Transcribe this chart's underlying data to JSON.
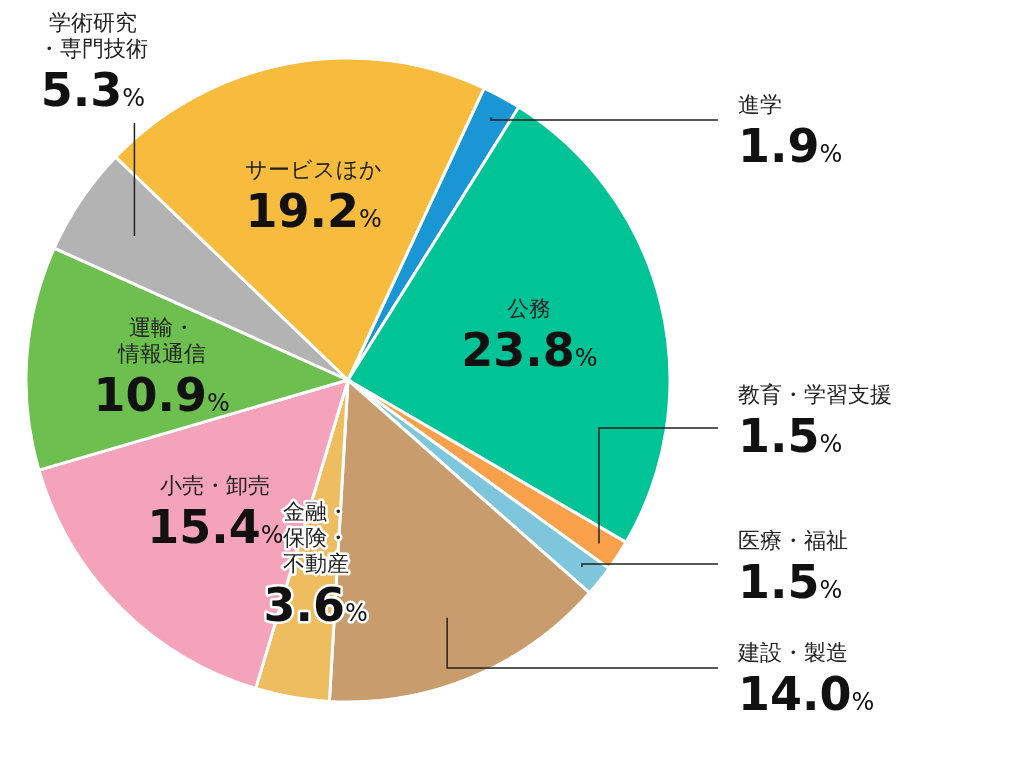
{
  "chart_data": {
    "type": "pie",
    "categories": [
      "進学",
      "公務",
      "教育・学習支援",
      "医療・福祉",
      "建設・製造",
      "金融・保険・不動産",
      "小売・卸売",
      "運輸・情報通信",
      "学術研究・専門技術",
      "サービスほか"
    ],
    "values": [
      1.9,
      23.8,
      1.5,
      1.5,
      14.0,
      3.6,
      15.4,
      10.9,
      5.3,
      19.2
    ],
    "colors": [
      "#1a96d4",
      "#00c396",
      "#f9a04a",
      "#7ec6dc",
      "#c89c6c",
      "#eebd60",
      "#f5a3bb",
      "#6dbf4f",
      "#b3b3b3",
      "#f7bb3e"
    ],
    "value_labels": [
      "1.9%",
      "23.8%",
      "1.5%",
      "1.5%",
      "14.0%",
      "3.6%",
      "15.4%",
      "10.9%",
      "5.3%",
      "19.2%"
    ]
  }
}
